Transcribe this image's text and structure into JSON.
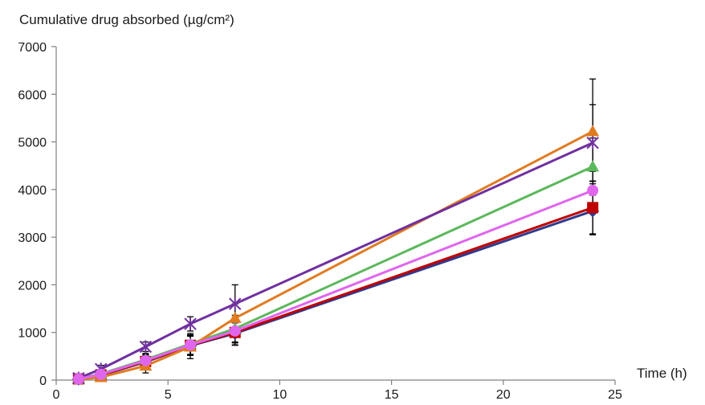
{
  "chart_data": {
    "type": "line",
    "title": "",
    "ylabel": "Cumulative drug absorbed  (µg/cm²)",
    "xlabel": "Time  (h)",
    "xlim": [
      0,
      25
    ],
    "ylim": [
      0,
      7000
    ],
    "x_ticks": [
      "0",
      "5",
      "10",
      "15",
      "20",
      "25"
    ],
    "y_ticks": [
      "0",
      "1000",
      "2000",
      "3000",
      "4000",
      "5000",
      "6000",
      "7000"
    ],
    "grid": false,
    "legend": "none",
    "x": [
      1,
      2,
      4,
      6,
      8,
      24
    ],
    "series": [
      {
        "color": "#2e3b8f",
        "marker": "diamond",
        "values": [
          20,
          100,
          380,
          720,
          980,
          3550
        ],
        "err": [
          30,
          40,
          120,
          200,
          250,
          500
        ]
      },
      {
        "color": "#c00000",
        "marker": "square",
        "values": [
          25,
          110,
          390,
          730,
          1000,
          3620
        ],
        "err": [
          30,
          40,
          130,
          210,
          260,
          550
        ]
      },
      {
        "color": "#5cb85c",
        "marker": "triangle",
        "values": [
          30,
          130,
          430,
          760,
          1080,
          4480
        ],
        "err": [
          30,
          50,
          130,
          220,
          280,
          600
        ]
      },
      {
        "color": "#e07b20",
        "marker": "triangle",
        "values": [
          15,
          60,
          300,
          700,
          1300,
          5220
        ],
        "err": [
          30,
          50,
          150,
          250,
          300,
          1100
        ]
      },
      {
        "color": "#7030a0",
        "marker": "cross",
        "values": [
          40,
          230,
          700,
          1180,
          1600,
          4980
        ],
        "err": [
          40,
          80,
          100,
          150,
          400,
          800
        ]
      },
      {
        "color": "#e066ee",
        "marker": "circle",
        "values": [
          25,
          120,
          410,
          740,
          1030,
          3980
        ],
        "err": [
          30,
          40,
          130,
          210,
          250,
          400
        ]
      }
    ]
  }
}
